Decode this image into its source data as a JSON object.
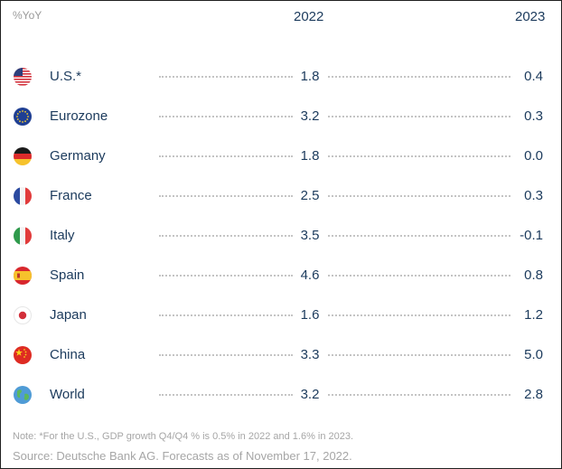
{
  "header": {
    "unit_label": "%YoY",
    "col_2022": "2022",
    "col_2023": "2023"
  },
  "chart_data": {
    "type": "table",
    "columns": [
      "2022",
      "2023"
    ],
    "unit": "%YoY",
    "rows": [
      {
        "label": "U.S.*",
        "flag": "us-flag-icon",
        "v2022": "1.8",
        "v2023": "0.4"
      },
      {
        "label": "Eurozone",
        "flag": "eu-flag-icon",
        "v2022": "3.2",
        "v2023": "0.3"
      },
      {
        "label": "Germany",
        "flag": "germany-flag-icon",
        "v2022": "1.8",
        "v2023": "0.0"
      },
      {
        "label": "France",
        "flag": "france-flag-icon",
        "v2022": "2.5",
        "v2023": "0.3"
      },
      {
        "label": "Italy",
        "flag": "italy-flag-icon",
        "v2022": "3.5",
        "v2023": "-0.1"
      },
      {
        "label": "Spain",
        "flag": "spain-flag-icon",
        "v2022": "4.6",
        "v2023": "0.8"
      },
      {
        "label": "Japan",
        "flag": "japan-flag-icon",
        "v2022": "1.6",
        "v2023": "1.2"
      },
      {
        "label": "China",
        "flag": "china-flag-icon",
        "v2022": "3.3",
        "v2023": "5.0"
      },
      {
        "label": "World",
        "flag": "globe-icon",
        "v2022": "3.2",
        "v2023": "2.8"
      }
    ]
  },
  "footer": {
    "note": "Note: *For the U.S., GDP growth Q4/Q4 % is 0.5% in 2022 and 1.6% in 2023.",
    "source": "Source: Deutsche Bank AG. Forecasts as of November 17, 2022."
  }
}
